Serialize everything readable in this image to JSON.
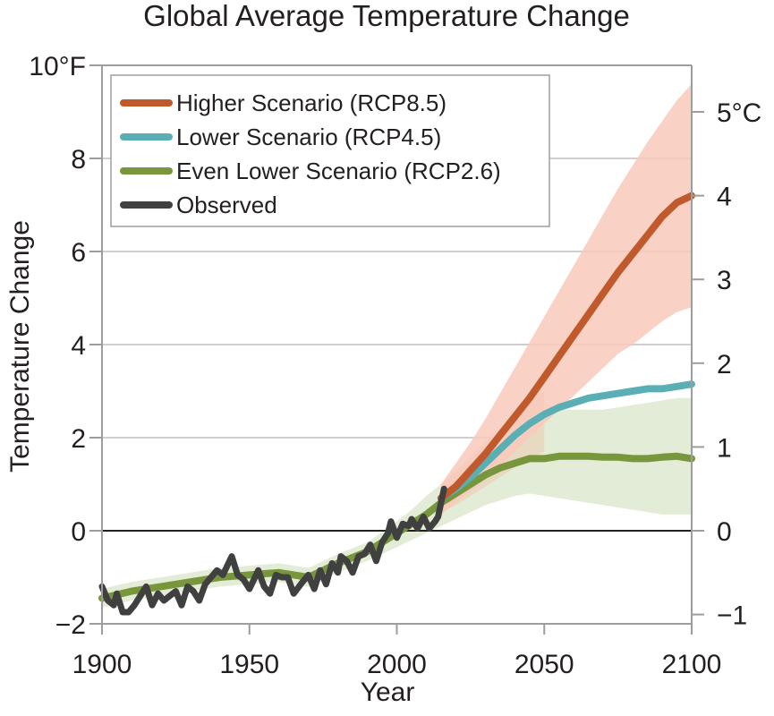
{
  "chart_data": {
    "type": "line",
    "title": "Global Average Temperature Change",
    "xlabel": "Year",
    "ylabel": "Temperature Change",
    "xlim": [
      1900,
      2100
    ],
    "ylim": [
      -2,
      10
    ],
    "x_ticks": [
      1900,
      1950,
      2000,
      2050,
      2100
    ],
    "x_tick_labels": [
      "1900",
      "1950",
      "2000",
      "2050",
      "2100"
    ],
    "y_ticks": [
      -2,
      0,
      2,
      4,
      6,
      8,
      10
    ],
    "y_tick_labels": [
      "−2",
      "0",
      "2",
      "4",
      "6",
      "8",
      "10°F"
    ],
    "y2_ticks_celsius": [
      -1,
      0,
      1,
      2,
      3,
      4,
      5
    ],
    "y2_tick_labels": [
      "−1",
      "0",
      "1",
      "2",
      "3",
      "4",
      "5°C"
    ],
    "grid": "horizontal",
    "zero_line": true,
    "legend_position": "top-left",
    "legend": [
      {
        "key": "rcp85",
        "label": "Higher Scenario (RCP8.5)",
        "color": "#c0592b"
      },
      {
        "key": "rcp45",
        "label": "Lower Scenario (RCP4.5)",
        "color": "#5aafb5"
      },
      {
        "key": "rcp26",
        "label": "Even Lower Scenario (RCP2.6)",
        "color": "#78963c"
      },
      {
        "key": "observed",
        "label": "Observed",
        "color": "#404040"
      }
    ],
    "series": [
      {
        "name": "Higher Scenario (RCP8.5)",
        "key": "rcp85",
        "color": "#c0592b",
        "band_color": "#f9c9bb",
        "x": [
          2015,
          2020,
          2025,
          2030,
          2035,
          2040,
          2045,
          2050,
          2055,
          2060,
          2065,
          2070,
          2075,
          2080,
          2085,
          2090,
          2095,
          2100
        ],
        "values": [
          0.7,
          0.95,
          1.3,
          1.65,
          2.05,
          2.45,
          2.85,
          3.3,
          3.75,
          4.2,
          4.65,
          5.1,
          5.55,
          5.95,
          6.35,
          6.75,
          7.05,
          7.2
        ],
        "band_low": [
          0.35,
          0.6,
          0.85,
          1.1,
          1.4,
          1.7,
          2.0,
          2.3,
          2.6,
          2.9,
          3.2,
          3.5,
          3.8,
          4.0,
          4.25,
          4.5,
          4.7,
          4.8
        ],
        "band_high": [
          1.0,
          1.45,
          1.9,
          2.4,
          2.95,
          3.5,
          4.05,
          4.6,
          5.15,
          5.7,
          6.25,
          6.8,
          7.35,
          7.85,
          8.35,
          8.8,
          9.25,
          9.6
        ]
      },
      {
        "name": "Lower Scenario (RCP4.5)",
        "key": "rcp45",
        "color": "#5aafb5",
        "band_color": "#e8d6be",
        "x": [
          2015,
          2020,
          2025,
          2030,
          2035,
          2040,
          2045,
          2050,
          2055,
          2060,
          2065,
          2070,
          2075,
          2080,
          2085,
          2090,
          2095,
          2100
        ],
        "values": [
          0.7,
          0.9,
          1.15,
          1.45,
          1.75,
          2.05,
          2.3,
          2.5,
          2.65,
          2.75,
          2.85,
          2.9,
          2.95,
          3.0,
          3.05,
          3.05,
          3.1,
          3.15
        ],
        "band_low": [
          0.4,
          0.55,
          0.75,
          0.95,
          1.15,
          1.35,
          1.55,
          1.7
        ],
        "band_high": [
          1.0,
          1.25,
          1.55,
          1.9,
          2.2,
          2.5,
          2.8,
          3.0
        ],
        "band_x": [
          2015,
          2020,
          2025,
          2030,
          2035,
          2040,
          2045,
          2050
        ]
      },
      {
        "name": "Even Lower Scenario (RCP2.6)",
        "key": "rcp26",
        "color": "#78963c",
        "band_color": "#e3ecd6",
        "x": [
          1900,
          1910,
          1920,
          1930,
          1940,
          1950,
          1960,
          1970,
          1980,
          1990,
          2000,
          2005,
          2010,
          2015,
          2020,
          2025,
          2030,
          2035,
          2040,
          2045,
          2050,
          2055,
          2060,
          2065,
          2070,
          2075,
          2080,
          2085,
          2090,
          2095,
          2100
        ],
        "values": [
          -1.45,
          -1.3,
          -1.2,
          -1.1,
          -1.0,
          -0.95,
          -0.9,
          -1.0,
          -0.7,
          -0.45,
          -0.05,
          0.15,
          0.35,
          0.6,
          0.8,
          1.0,
          1.2,
          1.35,
          1.45,
          1.55,
          1.55,
          1.6,
          1.6,
          1.6,
          1.58,
          1.58,
          1.55,
          1.55,
          1.58,
          1.6,
          1.55
        ],
        "band_low": [
          -1.65,
          -1.5,
          -1.4,
          -1.3,
          -1.2,
          -1.15,
          -1.1,
          -1.2,
          -0.9,
          -0.65,
          -0.35,
          -0.2,
          -0.05,
          0.1,
          0.25,
          0.4,
          0.55,
          0.65,
          0.75,
          0.8,
          0.75,
          0.7,
          0.65,
          0.6,
          0.55,
          0.5,
          0.45,
          0.4,
          0.35,
          0.35,
          0.35
        ],
        "band_high": [
          -1.25,
          -1.1,
          -1.0,
          -0.9,
          -0.8,
          -0.75,
          -0.7,
          -0.8,
          -0.5,
          -0.25,
          0.2,
          0.45,
          0.75,
          1.0,
          1.3,
          1.6,
          1.9,
          2.2,
          2.45,
          2.6,
          2.6,
          2.6,
          2.6,
          2.6,
          2.6,
          2.65,
          2.7,
          2.75,
          2.8,
          2.85,
          2.85
        ]
      },
      {
        "name": "Observed",
        "key": "observed",
        "color": "#404040",
        "x": [
          1900,
          1902,
          1904,
          1905,
          1907,
          1909,
          1911,
          1913,
          1915,
          1917,
          1919,
          1921,
          1923,
          1925,
          1927,
          1929,
          1931,
          1933,
          1935,
          1937,
          1939,
          1941,
          1944,
          1946,
          1948,
          1950,
          1953,
          1955,
          1957,
          1959,
          1961,
          1963,
          1965,
          1968,
          1970,
          1972,
          1974,
          1976,
          1978,
          1980,
          1981,
          1983,
          1985,
          1987,
          1989,
          1991,
          1993,
          1995,
          1997,
          1998,
          2000,
          2002,
          2004,
          2005,
          2007,
          2009,
          2011,
          2013,
          2014,
          2016
        ],
        "values": [
          -1.2,
          -1.5,
          -1.6,
          -1.35,
          -1.75,
          -1.75,
          -1.6,
          -1.4,
          -1.2,
          -1.6,
          -1.35,
          -1.5,
          -1.4,
          -1.3,
          -1.6,
          -1.2,
          -1.3,
          -1.5,
          -1.15,
          -1.0,
          -0.85,
          -0.95,
          -0.55,
          -0.95,
          -1.05,
          -1.25,
          -0.85,
          -1.2,
          -1.35,
          -0.95,
          -1.0,
          -1.0,
          -1.35,
          -1.1,
          -0.95,
          -1.25,
          -0.85,
          -1.15,
          -0.7,
          -0.9,
          -0.55,
          -0.65,
          -0.9,
          -0.55,
          -0.5,
          -0.3,
          -0.65,
          -0.25,
          -0.05,
          0.2,
          -0.15,
          0.15,
          0.1,
          0.25,
          0.05,
          0.3,
          0.05,
          0.2,
          0.3,
          0.9
        ]
      }
    ]
  }
}
